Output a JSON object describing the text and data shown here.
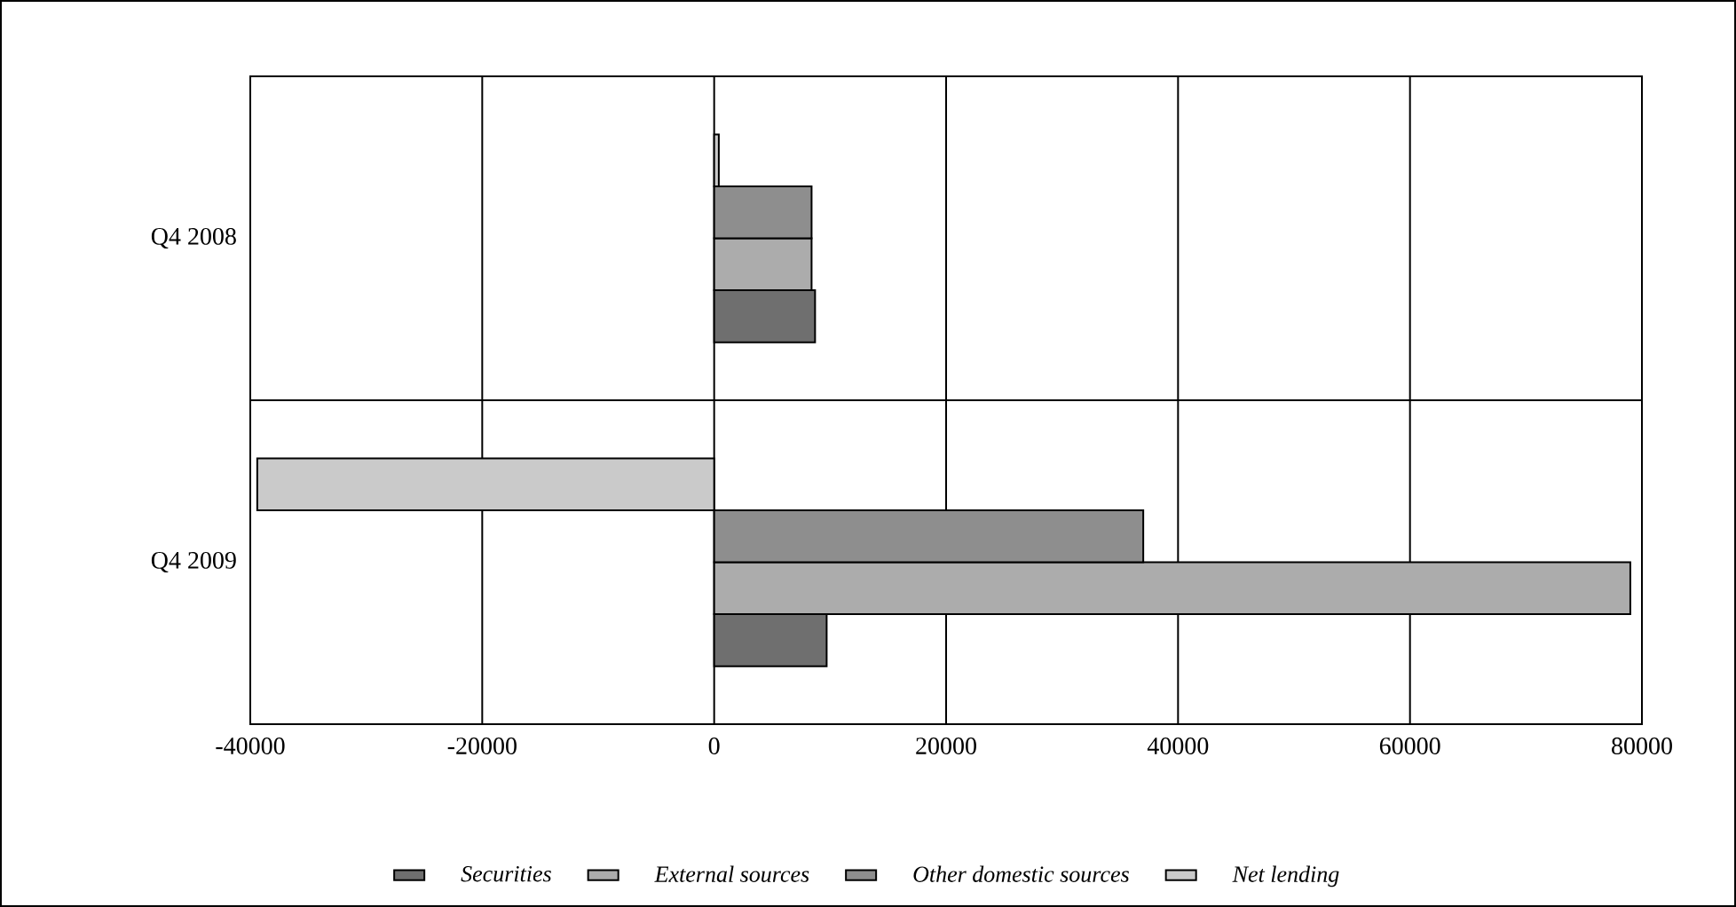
{
  "chart_data": {
    "type": "bar",
    "orientation": "horizontal",
    "categories": [
      "Q4 2008",
      "Q4 2009"
    ],
    "series": [
      {
        "name": "Securities",
        "color": "#6f6f6f",
        "values": [
          8700,
          9700
        ]
      },
      {
        "name": "External sources",
        "color": "#acacac",
        "values": [
          8400,
          79000
        ]
      },
      {
        "name": "Other domestic sources",
        "color": "#8e8e8e",
        "values": [
          8400,
          37000
        ]
      },
      {
        "name": "Net lending",
        "color": "#cacaca",
        "values": [
          400,
          -39400
        ]
      }
    ],
    "xlim": [
      -40000,
      80000
    ],
    "xticks": [
      -40000,
      -20000,
      0,
      20000,
      40000,
      60000,
      80000
    ],
    "grid": "x",
    "legend": "bottom"
  }
}
